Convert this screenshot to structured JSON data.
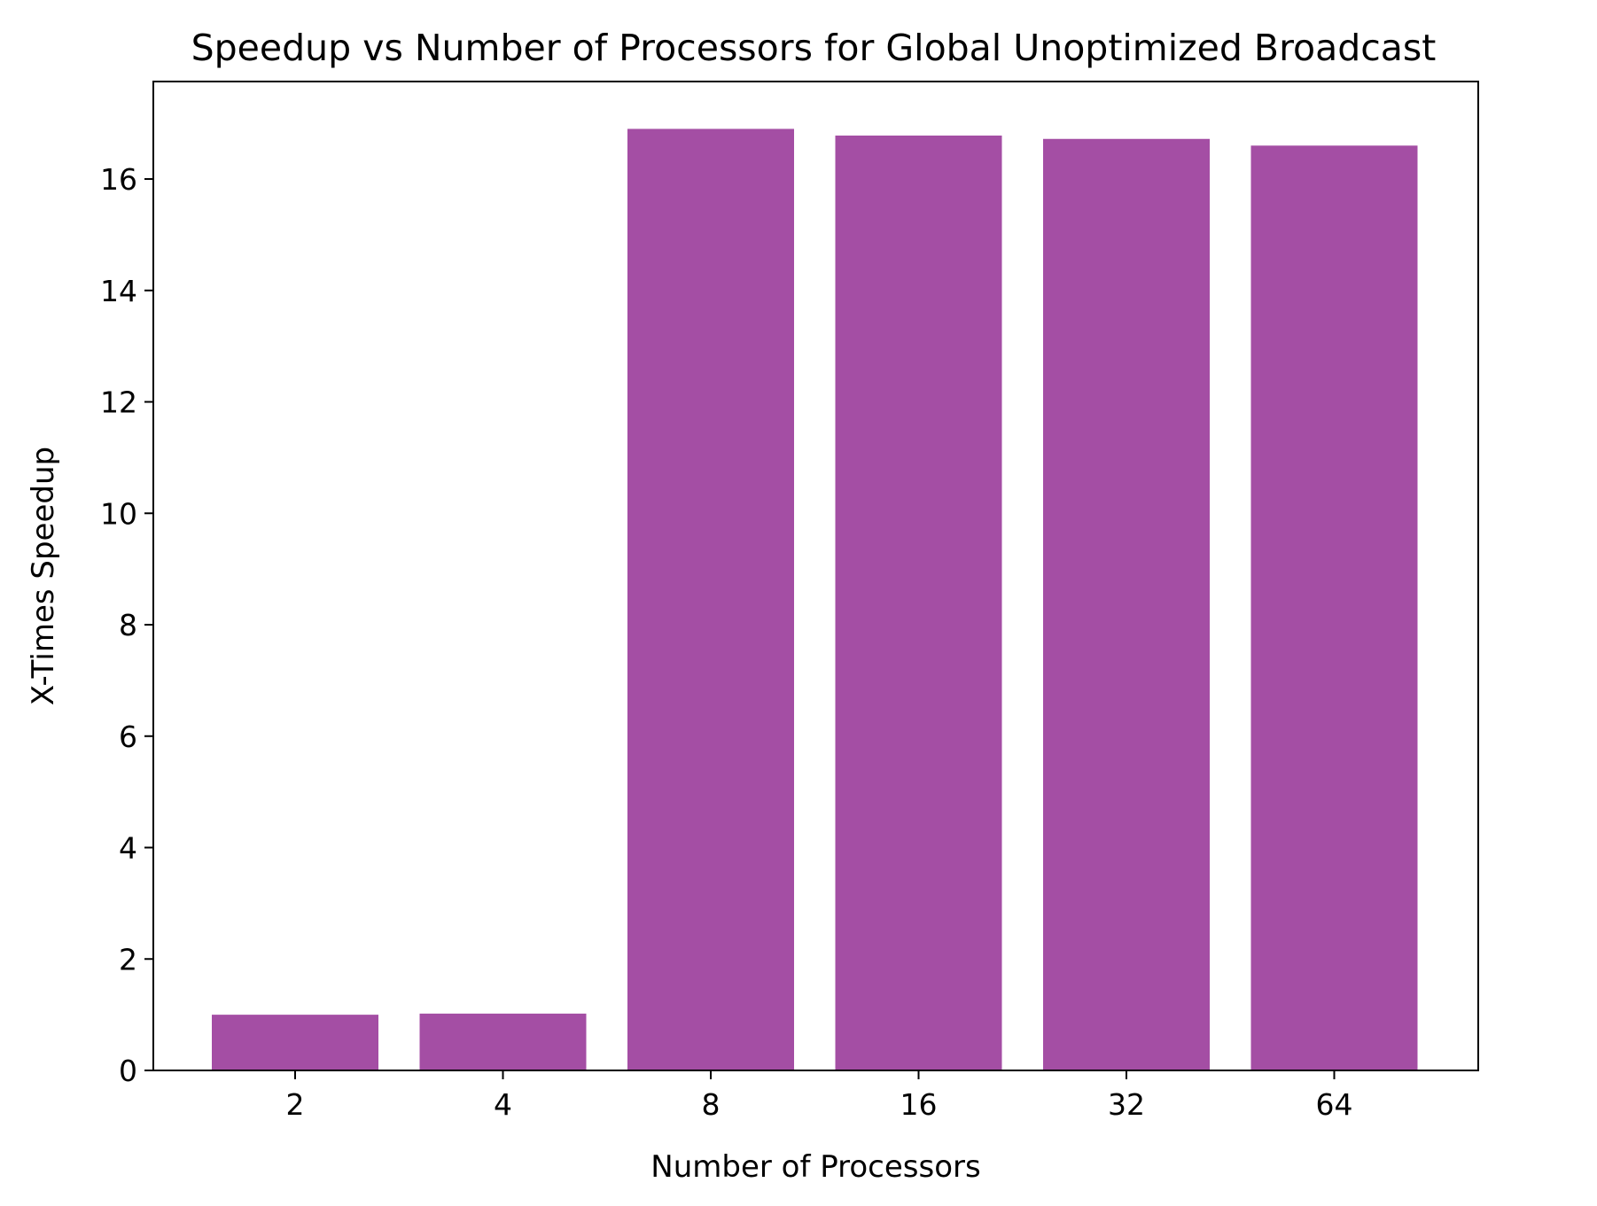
{
  "chart_data": {
    "type": "bar",
    "title": "Speedup vs Number of Processors for Global Unoptimized Broadcast",
    "xlabel": "Number of Processors",
    "ylabel": "X-Times Speedup",
    "categories": [
      "2",
      "4",
      "8",
      "16",
      "32",
      "64"
    ],
    "values": [
      1.0,
      1.02,
      16.9,
      16.78,
      16.72,
      16.6
    ],
    "ylim": [
      0,
      17.75
    ],
    "yticks": [
      0,
      2,
      4,
      6,
      8,
      10,
      12,
      14,
      16
    ],
    "grid": false,
    "bar_color": "#a44ea4"
  }
}
